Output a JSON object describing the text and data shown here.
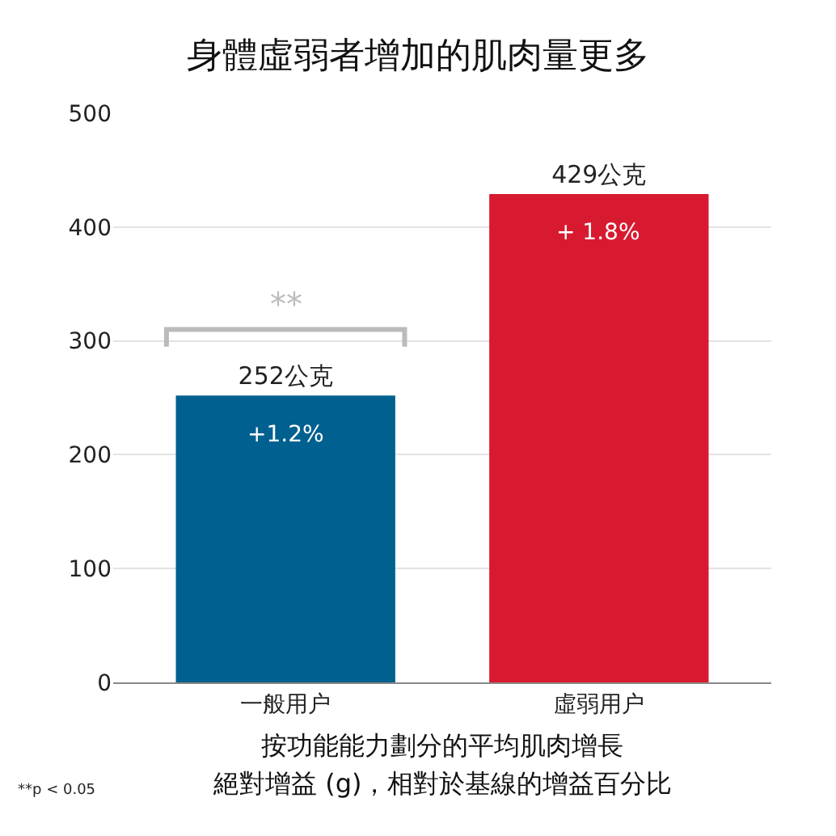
{
  "chart_data": {
    "type": "bar",
    "title": "身體虛弱者增加的肌肉量更多",
    "xlabel": "按功能能力劃分的平均肌肉增長",
    "categories": [
      "一般用户",
      "虛弱用户"
    ],
    "values": [
      252,
      429
    ],
    "colors": [
      "#00608f",
      "#d81a30"
    ],
    "value_labels": [
      "252公克",
      "429公克"
    ],
    "ylim": [
      0,
      500
    ],
    "yticks": [
      0,
      100,
      200,
      300,
      400,
      500
    ],
    "grid": "y",
    "annotations": [
      "+1.2%",
      "+ 1.8%",
      "**",
      "絕對增益 (g)，相對於基線的增益百分比",
      "**p < 0.05"
    ]
  }
}
